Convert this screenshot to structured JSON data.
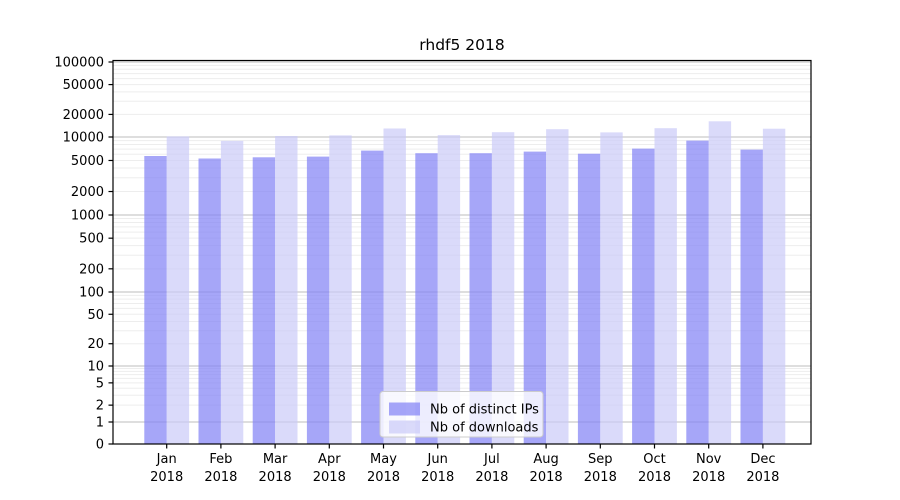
{
  "title": "rhdf5 2018",
  "legend": {
    "items": [
      {
        "label": "Nb of distinct IPs",
        "color": "rgba(132,132,245,0.72)"
      },
      {
        "label": "Nb of downloads",
        "color": "rgba(202,202,248,0.70)"
      }
    ]
  },
  "style": {
    "major_grid_color": "#bdbdbd",
    "minor_grid_color": "#ededed",
    "axis_color": "#000000",
    "bar_dark_apparent": "#a6a6f8",
    "bar_light_apparent": "#d9d9fa"
  },
  "chart_data": {
    "type": "bar",
    "title": "rhdf5 2018",
    "categories": [
      "Jan 2018",
      "Feb 2018",
      "Mar 2018",
      "Apr 2018",
      "May 2018",
      "Jun 2018",
      "Jul 2018",
      "Aug 2018",
      "Sep 2018",
      "Oct 2018",
      "Nov 2018",
      "Dec 2018"
    ],
    "series": [
      {
        "name": "Nb of distinct IPs",
        "values": [
          5700,
          5300,
          5500,
          5600,
          6700,
          6200,
          6200,
          6500,
          6100,
          7100,
          9000,
          6900
        ]
      },
      {
        "name": "Nb of downloads",
        "values": [
          10200,
          8900,
          10300,
          10500,
          13000,
          10600,
          11600,
          12700,
          11500,
          13100,
          16200,
          12900
        ]
      }
    ],
    "xlabel": "",
    "ylabel": "",
    "y_ticks": [
      0,
      1,
      2,
      5,
      10,
      20,
      50,
      100,
      200,
      500,
      1000,
      2000,
      5000,
      10000,
      20000,
      50000,
      100000
    ],
    "ylim": [
      0,
      100000
    ],
    "yscale": "log-with-zero",
    "grid": "horizontal, log minor lines",
    "legend_position": "lower center"
  }
}
